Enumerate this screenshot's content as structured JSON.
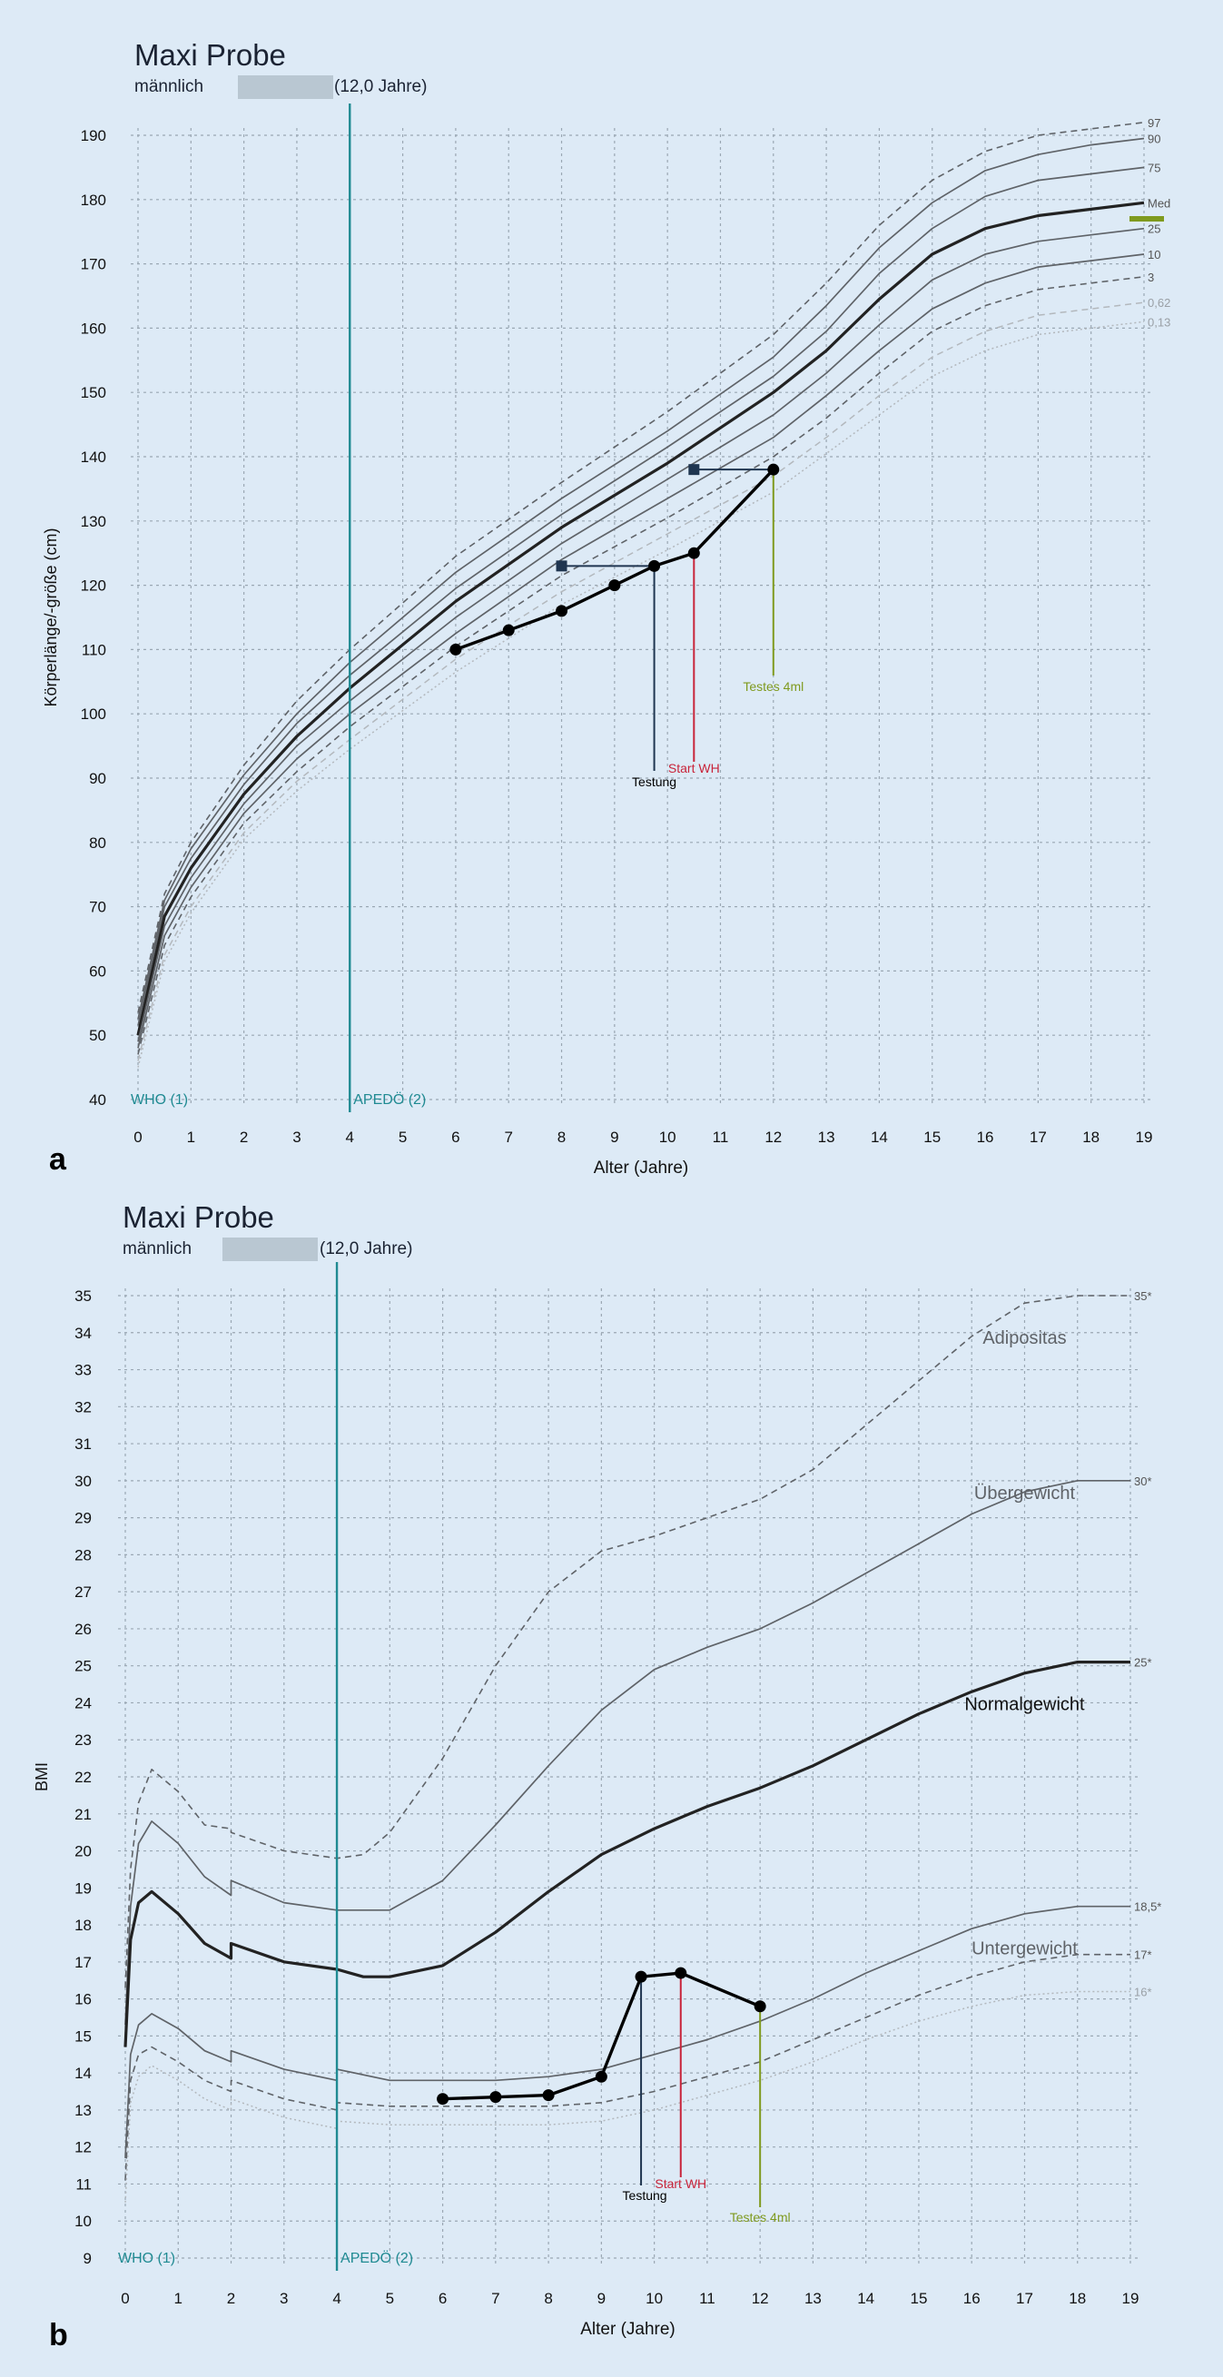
{
  "colors": {
    "background": "#ddeaf6",
    "grid": "#9aa7b3",
    "centile": "#5f6368",
    "median": "#222222",
    "patient": "#000000",
    "teal": "#1f8a92",
    "testung": "#1f3550",
    "start_wh": "#c8243a",
    "testes": "#7f9a1e",
    "pale": "#b3b8bd"
  },
  "panels": [
    {
      "letter": "a",
      "title": "Maxi Probe",
      "sex": "männlich",
      "age_label": "(12,0 Jahre)"
    },
    {
      "letter": "b",
      "title": "Maxi Probe",
      "sex": "männlich",
      "age_label": "(12,0 Jahre)"
    }
  ],
  "chart_data": [
    {
      "type": "line",
      "xlabel": "Alter (Jahre)",
      "ylabel": "Körperlänge/-größe (cm)",
      "xlim": [
        0,
        19
      ],
      "ylim": [
        40,
        190
      ],
      "x_ticks": [
        0,
        1,
        2,
        3,
        4,
        5,
        6,
        7,
        8,
        9,
        10,
        11,
        12,
        13,
        14,
        15,
        16,
        17,
        18,
        19
      ],
      "y_ticks": [
        40,
        50,
        60,
        70,
        80,
        90,
        100,
        110,
        120,
        130,
        140,
        150,
        160,
        170,
        180,
        190
      ],
      "grid": true,
      "vertical_line": {
        "x": 4,
        "label": "APEDÖ (2)"
      },
      "source_label": "WHO (1)",
      "series": [
        {
          "name": "97",
          "style": "dashed",
          "x": [
            0,
            0.5,
            1,
            2,
            3,
            4,
            6,
            8,
            10,
            12,
            13,
            14,
            15,
            16,
            17,
            18,
            19
          ],
          "y": [
            53.5,
            72,
            80,
            92,
            102,
            110,
            124.5,
            136,
            147,
            159,
            167,
            176,
            183,
            187.5,
            190,
            191,
            192
          ]
        },
        {
          "name": "90",
          "style": "solid-thin",
          "x": [
            0,
            0.5,
            1,
            2,
            3,
            4,
            6,
            8,
            10,
            12,
            13,
            14,
            15,
            16,
            17,
            18,
            19
          ],
          "y": [
            52.5,
            71,
            79,
            90.5,
            100,
            108,
            122,
            133.5,
            144,
            155.5,
            163.5,
            172.5,
            179.5,
            184.5,
            187,
            188.5,
            189.5
          ]
        },
        {
          "name": "75",
          "style": "solid-thin",
          "x": [
            0,
            0.5,
            1,
            2,
            3,
            4,
            6,
            8,
            10,
            12,
            13,
            14,
            15,
            16,
            17,
            18,
            19
          ],
          "y": [
            51.5,
            70,
            77.5,
            89,
            98.5,
            106,
            119.5,
            131,
            141.5,
            152.5,
            159.5,
            168.5,
            175.5,
            180.5,
            183,
            184,
            185
          ]
        },
        {
          "name": "Med",
          "style": "median",
          "x": [
            0,
            0.5,
            1,
            2,
            3,
            4,
            6,
            8,
            10,
            12,
            13,
            14,
            15,
            16,
            17,
            18,
            19
          ],
          "y": [
            50,
            68.5,
            76,
            87.5,
            96.5,
            104,
            117.5,
            129,
            139,
            150,
            156.5,
            164.5,
            171.5,
            175.5,
            177.5,
            178.5,
            179.5
          ]
        },
        {
          "name": "25",
          "style": "solid-thin",
          "x": [
            0,
            0.5,
            1,
            2,
            3,
            4,
            6,
            8,
            10,
            12,
            13,
            14,
            15,
            16,
            17,
            18,
            19
          ],
          "y": [
            49,
            67,
            74.5,
            86,
            95,
            102,
            115,
            126.5,
            136.5,
            146.5,
            153,
            160.5,
            167.5,
            171.5,
            173.5,
            174.5,
            175.5
          ]
        },
        {
          "name": "10",
          "style": "solid-thin",
          "x": [
            0,
            0.5,
            1,
            2,
            3,
            4,
            6,
            8,
            10,
            12,
            13,
            14,
            15,
            16,
            17,
            18,
            19
          ],
          "y": [
            48,
            65.5,
            73,
            84.5,
            93,
            100,
            112.5,
            124,
            133.5,
            143,
            149.5,
            156.5,
            163,
            167,
            169.5,
            170.5,
            171.5
          ]
        },
        {
          "name": "3",
          "style": "dashed",
          "x": [
            0,
            0.5,
            1,
            2,
            3,
            4,
            6,
            8,
            10,
            12,
            13,
            14,
            15,
            16,
            17,
            18,
            19
          ],
          "y": [
            47,
            64,
            71.5,
            83,
            91,
            98,
            110.5,
            121.5,
            130.5,
            140,
            146,
            153,
            159.5,
            163.5,
            166,
            167,
            168
          ]
        },
        {
          "name": "0,62",
          "style": "dashed-pale",
          "x": [
            0,
            0.5,
            1,
            2,
            3,
            4,
            6,
            8,
            10,
            12,
            13,
            14,
            15,
            16,
            17,
            18,
            19
          ],
          "y": [
            46,
            62.5,
            70,
            81.5,
            89.5,
            96,
            108.5,
            119,
            128,
            137,
            143,
            149.5,
            155.5,
            159.5,
            162,
            163,
            164
          ]
        },
        {
          "name": "0,13",
          "style": "dotted-pale",
          "x": [
            0,
            0.5,
            1,
            2,
            3,
            4,
            6,
            8,
            10,
            12,
            13,
            14,
            15,
            16,
            17,
            18,
            19
          ],
          "y": [
            45,
            61.5,
            69,
            80.5,
            88,
            94.5,
            106.5,
            117,
            125.5,
            134.5,
            140.5,
            146.5,
            152.5,
            156.5,
            159,
            160,
            161
          ]
        }
      ],
      "patient": {
        "x": [
          6,
          7,
          8,
          9,
          9.75,
          10.5,
          12
        ],
        "y": [
          110,
          113,
          116,
          120,
          123,
          125,
          138
        ]
      },
      "bone_age_markers": [
        {
          "from": [
            9.75,
            123
          ],
          "to": [
            8,
            123
          ]
        },
        {
          "from": [
            12,
            138
          ],
          "to": [
            10.5,
            138
          ]
        }
      ],
      "events": [
        {
          "label": "Testung",
          "x": 9.75,
          "color_key": "testung"
        },
        {
          "label": "Start WH",
          "x": 10.5,
          "color_key": "start_wh"
        },
        {
          "label": "Testes 4ml",
          "x": 12,
          "color_key": "testes"
        }
      ],
      "target_height": {
        "y": 177
      }
    },
    {
      "type": "line",
      "xlabel": "Alter (Jahre)",
      "ylabel": "BMI",
      "xlim": [
        0,
        19
      ],
      "ylim": [
        9,
        35
      ],
      "x_ticks": [
        0,
        1,
        2,
        3,
        4,
        5,
        6,
        7,
        8,
        9,
        10,
        11,
        12,
        13,
        14,
        15,
        16,
        17,
        18,
        19
      ],
      "y_ticks": [
        9,
        10,
        11,
        12,
        13,
        14,
        15,
        16,
        17,
        18,
        19,
        20,
        21,
        22,
        23,
        24,
        25,
        26,
        27,
        28,
        29,
        30,
        31,
        32,
        33,
        34,
        35
      ],
      "grid": true,
      "vertical_line": {
        "x": 4,
        "label": "APEDÖ (2)"
      },
      "source_label": "WHO (1)",
      "series": [
        {
          "name": "35*",
          "style": "dashed",
          "x": [
            0,
            0.1,
            0.25,
            0.5,
            1,
            1.5,
            2,
            2,
            3,
            4,
            4.5,
            5,
            6,
            7,
            8,
            9,
            10,
            11,
            12,
            13,
            14,
            15,
            16,
            17,
            18,
            19
          ],
          "y": [
            16.3,
            19.5,
            21.3,
            22.2,
            21.6,
            20.7,
            20.6,
            20.5,
            20,
            19.8,
            19.9,
            20.5,
            22.5,
            25,
            27,
            28.1,
            28.5,
            29,
            29.5,
            30.3,
            31.5,
            32.7,
            33.9,
            34.8,
            35,
            35
          ]
        },
        {
          "name": "30*",
          "style": "solid-thin",
          "x": [
            0,
            0.1,
            0.25,
            0.5,
            1,
            1.5,
            2,
            2,
            3,
            4,
            4,
            5,
            6,
            7,
            8,
            9,
            10,
            11,
            12,
            13,
            14,
            15,
            16,
            17,
            18,
            19
          ],
          "y": [
            15.3,
            18.5,
            20.2,
            20.8,
            20.2,
            19.3,
            18.8,
            19.2,
            18.6,
            18.4,
            18.4,
            18.4,
            19.2,
            20.7,
            22.3,
            23.8,
            24.9,
            25.5,
            26,
            26.7,
            27.5,
            28.3,
            29.1,
            29.7,
            30,
            30
          ]
        },
        {
          "name": "25*",
          "style": "median",
          "x": [
            0,
            0.1,
            0.25,
            0.5,
            1,
            1.5,
            2,
            2,
            3,
            4,
            4.5,
            5,
            6,
            7,
            8,
            9,
            10,
            11,
            12,
            13,
            14,
            15,
            16,
            17,
            18,
            19
          ],
          "y": [
            14.7,
            17.6,
            18.6,
            18.9,
            18.3,
            17.5,
            17.1,
            17.5,
            17,
            16.8,
            16.6,
            16.6,
            16.9,
            17.8,
            18.9,
            19.9,
            20.6,
            21.2,
            21.7,
            22.3,
            23,
            23.7,
            24.3,
            24.8,
            25.1,
            25.1
          ]
        },
        {
          "name": "18,5*",
          "style": "solid-thin",
          "x": [
            0,
            0.1,
            0.25,
            0.5,
            1,
            1.5,
            2,
            2,
            3,
            4,
            4,
            5,
            6,
            7,
            8,
            9,
            10,
            11,
            12,
            13,
            14,
            15,
            16,
            17,
            18,
            19
          ],
          "y": [
            11.7,
            14.5,
            15.3,
            15.6,
            15.2,
            14.6,
            14.3,
            14.6,
            14.1,
            13.8,
            14.1,
            13.8,
            13.8,
            13.8,
            13.9,
            14.1,
            14.5,
            14.9,
            15.4,
            16,
            16.7,
            17.3,
            17.9,
            18.3,
            18.5,
            18.5
          ]
        },
        {
          "name": "17*",
          "style": "dashed",
          "x": [
            0,
            0.1,
            0.25,
            0.5,
            1,
            1.5,
            2,
            2,
            3,
            4,
            4,
            5,
            6,
            7,
            8,
            9,
            10,
            11,
            12,
            13,
            14,
            15,
            16,
            17,
            18,
            19
          ],
          "y": [
            11.1,
            13.8,
            14.5,
            14.7,
            14.3,
            13.8,
            13.5,
            13.8,
            13.3,
            13,
            13.2,
            13.1,
            13.1,
            13.1,
            13.1,
            13.2,
            13.5,
            13.9,
            14.3,
            14.9,
            15.5,
            16.1,
            16.6,
            17,
            17.2,
            17.2
          ]
        },
        {
          "name": "16*",
          "style": "dotted-pale",
          "x": [
            0,
            0.1,
            0.25,
            0.5,
            1,
            1.5,
            2,
            2,
            3,
            4,
            4,
            5,
            6,
            7,
            8,
            9,
            10,
            11,
            12,
            13,
            14,
            15,
            16,
            17,
            18,
            19
          ],
          "y": [
            10.5,
            13.2,
            13.9,
            14.2,
            13.8,
            13.3,
            13,
            13.3,
            12.8,
            12.5,
            12.7,
            12.6,
            12.6,
            12.6,
            12.6,
            12.7,
            13,
            13.4,
            13.8,
            14.3,
            14.9,
            15.4,
            15.8,
            16.1,
            16.2,
            16.2
          ]
        }
      ],
      "zone_labels": [
        {
          "text": "Adipositas",
          "x": 17,
          "y": 33.7
        },
        {
          "text": "Übergewicht",
          "x": 17,
          "y": 29.5
        },
        {
          "text": "Normalgewicht",
          "x": 17,
          "y": 23.8
        },
        {
          "text": "Untergewicht",
          "x": 17,
          "y": 17.2
        }
      ],
      "patient": {
        "x": [
          6,
          7,
          8,
          9,
          9.75,
          10.5,
          12
        ],
        "y": [
          13.3,
          13.35,
          13.4,
          13.9,
          16.6,
          16.7,
          15.8
        ]
      },
      "events": [
        {
          "label": "Testung",
          "x": 9.75,
          "color_key": "testung"
        },
        {
          "label": "Start WH",
          "x": 10.5,
          "color_key": "start_wh"
        },
        {
          "label": "Testes 4ml",
          "x": 12,
          "color_key": "testes"
        }
      ]
    }
  ]
}
